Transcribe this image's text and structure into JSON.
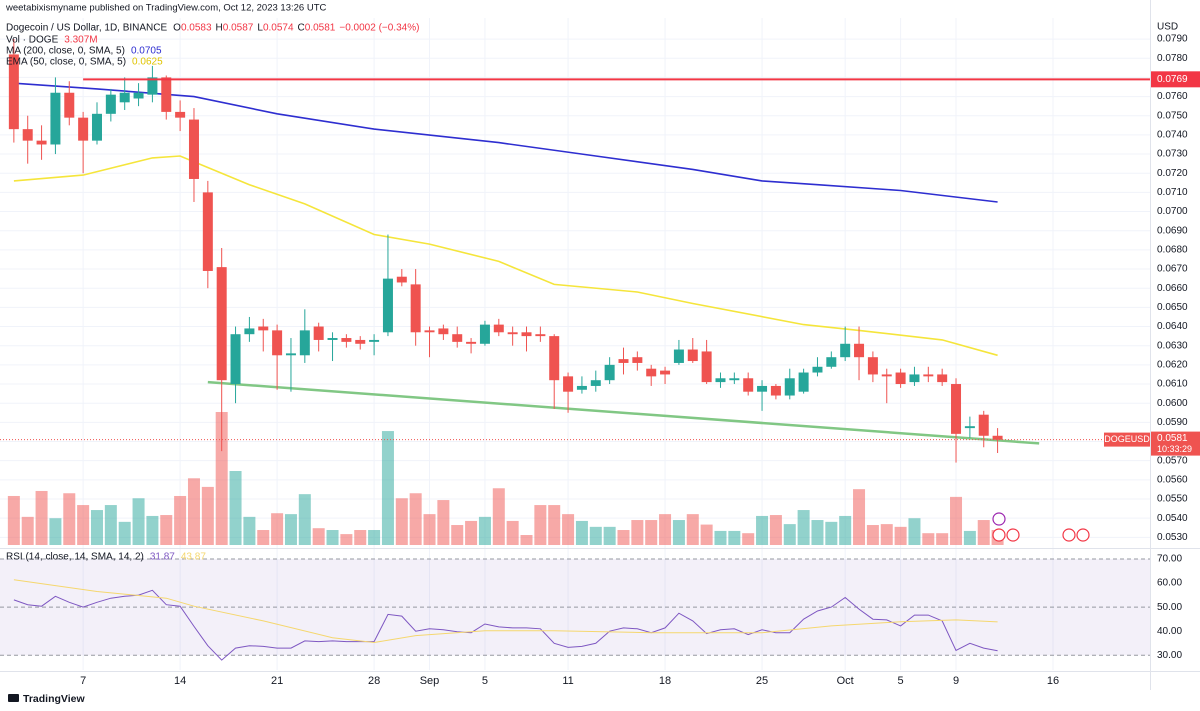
{
  "header": {
    "published": "weetabixismyname published on TradingView.com, Oct 12, 2023 13:26 UTC",
    "title": "Dogecoin / US Dollar, 1D, BINANCE",
    "ohlc_labels": [
      "O",
      "H",
      "L",
      "C"
    ],
    "change": "−0.0002 (−0.34%)",
    "volume_label": "Vol · DOGE",
    "currency": "USD",
    "symbol": "DOGEUSD",
    "countdown": "10:33:29",
    "brand": "TradingView"
  },
  "chart_data": [
    {
      "type": "candlestick",
      "x": [
        "2023-08-02",
        "2023-08-03",
        "2023-08-04",
        "2023-08-05",
        "2023-08-06",
        "2023-08-07",
        "2023-08-08",
        "2023-08-09",
        "2023-08-10",
        "2023-08-11",
        "2023-08-12",
        "2023-08-13",
        "2023-08-14",
        "2023-08-15",
        "2023-08-16",
        "2023-08-17",
        "2023-08-18",
        "2023-08-19",
        "2023-08-20",
        "2023-08-21",
        "2023-08-22",
        "2023-08-23",
        "2023-08-24",
        "2023-08-25",
        "2023-08-26",
        "2023-08-27",
        "2023-08-28",
        "2023-08-29",
        "2023-08-30",
        "2023-08-31",
        "2023-09-01",
        "2023-09-02",
        "2023-09-03",
        "2023-09-04",
        "2023-09-05",
        "2023-09-06",
        "2023-09-07",
        "2023-09-08",
        "2023-09-09",
        "2023-09-10",
        "2023-09-11",
        "2023-09-12",
        "2023-09-13",
        "2023-09-14",
        "2023-09-15",
        "2023-09-16",
        "2023-09-17",
        "2023-09-18",
        "2023-09-19",
        "2023-09-20",
        "2023-09-21",
        "2023-09-22",
        "2023-09-23",
        "2023-09-24",
        "2023-09-25",
        "2023-09-26",
        "2023-09-27",
        "2023-09-28",
        "2023-09-29",
        "2023-09-30",
        "2023-10-01",
        "2023-10-02",
        "2023-10-03",
        "2023-10-04",
        "2023-10-05",
        "2023-10-06",
        "2023-10-07",
        "2023-10-08",
        "2023-10-09",
        "2023-10-10",
        "2023-10-11",
        "2023-10-12"
      ],
      "open": [
        0.0782,
        0.0743,
        0.0737,
        0.0735,
        0.0762,
        0.0749,
        0.0737,
        0.0751,
        0.0757,
        0.0759,
        0.0761,
        0.077,
        0.0752,
        0.0748,
        0.071,
        0.0671,
        0.061,
        0.0636,
        0.064,
        0.0638,
        0.0625,
        0.0625,
        0.064,
        0.0633,
        0.0634,
        0.0633,
        0.0632,
        0.0637,
        0.0666,
        0.0662,
        0.0638,
        0.0639,
        0.0636,
        0.0632,
        0.0631,
        0.0641,
        0.0637,
        0.0637,
        0.0636,
        0.0635,
        0.0614,
        0.0607,
        0.0609,
        0.0612,
        0.0623,
        0.0624,
        0.0618,
        0.0617,
        0.0621,
        0.0628,
        0.0627,
        0.0611,
        0.0612,
        0.0613,
        0.0606,
        0.0609,
        0.0604,
        0.0606,
        0.0616,
        0.0619,
        0.0624,
        0.0631,
        0.0624,
        0.0615,
        0.0616,
        0.0611,
        0.0615,
        0.0615,
        0.061,
        0.0587,
        0.0594,
        0.0583
      ],
      "high": [
        0.079,
        0.075,
        0.0745,
        0.077,
        0.0768,
        0.0752,
        0.0757,
        0.0764,
        0.077,
        0.0767,
        0.0776,
        0.0771,
        0.0758,
        0.0754,
        0.0716,
        0.0681,
        0.064,
        0.0645,
        0.0644,
        0.0641,
        0.0634,
        0.0649,
        0.0642,
        0.0637,
        0.0636,
        0.0635,
        0.0636,
        0.0688,
        0.067,
        0.067,
        0.064,
        0.0641,
        0.064,
        0.0634,
        0.0643,
        0.0644,
        0.064,
        0.064,
        0.064,
        0.0636,
        0.0616,
        0.0614,
        0.0617,
        0.0624,
        0.0629,
        0.0627,
        0.062,
        0.0619,
        0.0633,
        0.0634,
        0.0633,
        0.0616,
        0.0616,
        0.0616,
        0.0612,
        0.061,
        0.0618,
        0.0618,
        0.0624,
        0.0627,
        0.064,
        0.064,
        0.0627,
        0.0618,
        0.0618,
        0.0619,
        0.0619,
        0.0618,
        0.0613,
        0.0593,
        0.0596,
        0.0587
      ],
      "low": [
        0.0736,
        0.0725,
        0.0727,
        0.073,
        0.0745,
        0.072,
        0.0735,
        0.0747,
        0.0753,
        0.0755,
        0.0757,
        0.0748,
        0.0742,
        0.0705,
        0.066,
        0.0575,
        0.06,
        0.0632,
        0.0627,
        0.0607,
        0.0606,
        0.0621,
        0.0627,
        0.0622,
        0.0629,
        0.0628,
        0.0625,
        0.0635,
        0.0661,
        0.063,
        0.0624,
        0.0633,
        0.0629,
        0.0626,
        0.063,
        0.0635,
        0.063,
        0.0627,
        0.0632,
        0.0597,
        0.0595,
        0.0605,
        0.0606,
        0.061,
        0.0615,
        0.0617,
        0.0609,
        0.061,
        0.062,
        0.0621,
        0.061,
        0.0608,
        0.061,
        0.0604,
        0.0596,
        0.0602,
        0.0602,
        0.0605,
        0.0614,
        0.0618,
        0.0622,
        0.0612,
        0.0611,
        0.06,
        0.0608,
        0.0609,
        0.0611,
        0.0609,
        0.0569,
        0.0582,
        0.0577,
        0.0574
      ],
      "close": [
        0.0743,
        0.0737,
        0.0735,
        0.0762,
        0.0749,
        0.0737,
        0.0751,
        0.0761,
        0.0762,
        0.0762,
        0.077,
        0.0752,
        0.0749,
        0.0717,
        0.0669,
        0.0612,
        0.0636,
        0.0639,
        0.0638,
        0.0625,
        0.0626,
        0.0638,
        0.0633,
        0.0634,
        0.0632,
        0.0631,
        0.0633,
        0.0665,
        0.0663,
        0.0637,
        0.0637,
        0.0636,
        0.0632,
        0.0631,
        0.0641,
        0.0637,
        0.0636,
        0.0635,
        0.0635,
        0.0612,
        0.0606,
        0.0609,
        0.0612,
        0.062,
        0.0621,
        0.0621,
        0.0614,
        0.0615,
        0.0628,
        0.0622,
        0.0611,
        0.0613,
        0.0613,
        0.0606,
        0.0609,
        0.0604,
        0.0613,
        0.0616,
        0.0619,
        0.0624,
        0.0631,
        0.0624,
        0.0615,
        0.0614,
        0.061,
        0.0615,
        0.0614,
        0.0611,
        0.0584,
        0.0588,
        0.0583,
        0.0581
      ],
      "up_color": "#26a69a",
      "down_color": "#ef5350",
      "volume": {
        "values": [
          10800000,
          6200000,
          11900000,
          5900000,
          11400000,
          8800000,
          7700000,
          8800000,
          5100000,
          10300000,
          6400000,
          6600000,
          10800000,
          14700000,
          12800000,
          29300000,
          16300000,
          6200000,
          3300000,
          7000000,
          6800000,
          11200000,
          3700000,
          3300000,
          2400000,
          3300000,
          3300000,
          25100000,
          10300000,
          11400000,
          6800000,
          9900000,
          4400000,
          5300000,
          6200000,
          12500000,
          5300000,
          2200000,
          8800000,
          8800000,
          6800000,
          5300000,
          4000000,
          4000000,
          3300000,
          5500000,
          5500000,
          6800000,
          5500000,
          6800000,
          4500000,
          3100000,
          3100000,
          2600000,
          6400000,
          6600000,
          4600000,
          7700000,
          5500000,
          5100000,
          6400000,
          12300000,
          4400000,
          4600000,
          4000000,
          5900000,
          2600000,
          2600000,
          10600000,
          3100000,
          5500000,
          3307000
        ],
        "value_labels": [
          null,
          null,
          null,
          null,
          null,
          null,
          null,
          null,
          null,
          null,
          null,
          null,
          null,
          null,
          null,
          null,
          null,
          null,
          null,
          null,
          null,
          null,
          null,
          null,
          null,
          null,
          null,
          null,
          null,
          null,
          null,
          null,
          null,
          null,
          null,
          null,
          null,
          null,
          null,
          null,
          null,
          null,
          null,
          null,
          null,
          null,
          null,
          null,
          null,
          null,
          null,
          null,
          null,
          null,
          null,
          null,
          null,
          null,
          null,
          null,
          null,
          null,
          null,
          null,
          null,
          null,
          null,
          null,
          null,
          null,
          null,
          "3.307M"
        ]
      },
      "series": [
        {
          "name": "MA (200, close, 0, SMA, 5)",
          "color": "#2e2ed0",
          "x": [
            "2023-08-02",
            "2023-08-08",
            "2023-08-15",
            "2023-08-21",
            "2023-08-28",
            "2023-09-06",
            "2023-09-13",
            "2023-09-20",
            "2023-09-25",
            "2023-09-29",
            "2023-10-05",
            "2023-10-12"
          ],
          "values": [
            0.0767,
            0.0764,
            0.076,
            0.0751,
            0.0743,
            0.0736,
            0.0729,
            0.0722,
            0.0716,
            0.0714,
            0.0711,
            0.0705
          ]
        },
        {
          "name": "EMA (50, close, 0, SMA, 5)",
          "color": "#f5e53b",
          "x": [
            "2023-08-02",
            "2023-08-07",
            "2023-08-12",
            "2023-08-14",
            "2023-08-16",
            "2023-08-19",
            "2023-08-23",
            "2023-08-28",
            "2023-09-01",
            "2023-09-06",
            "2023-09-10",
            "2023-09-16",
            "2023-09-20",
            "2023-09-28",
            "2023-10-02",
            "2023-10-08",
            "2023-10-12"
          ],
          "values": [
            0.0716,
            0.0719,
            0.0728,
            0.0729,
            0.0723,
            0.0714,
            0.0704,
            0.0688,
            0.0683,
            0.0674,
            0.0662,
            0.0658,
            0.0652,
            0.0641,
            0.0638,
            0.0633,
            0.0625
          ]
        }
      ],
      "hlines": [
        {
          "value": 0.0769,
          "x": "2023-08-07",
          "color": "#f23645"
        }
      ],
      "trendlines": [
        {
          "x": [
            "2023-08-16",
            "2023-10-15"
          ],
          "values": [
            0.0611,
            0.0579
          ],
          "color": "#81c784"
        }
      ],
      "ylim": [
        0.0526,
        0.0801
      ],
      "yticks": [
        {
          "value": 0.053,
          "label": "0.0530"
        },
        {
          "value": 0.054,
          "label": "0.0540"
        },
        {
          "value": 0.055,
          "label": "0.0550"
        },
        {
          "value": 0.056,
          "label": "0.0560"
        },
        {
          "value": 0.057,
          "label": "0.0570"
        },
        {
          "value": 0.058,
          "label": "0.0580"
        },
        {
          "value": 0.059,
          "label": "0.0590"
        },
        {
          "value": 0.06,
          "label": "0.0600"
        },
        {
          "value": 0.061,
          "label": "0.0610"
        },
        {
          "value": 0.062,
          "label": "0.0620"
        },
        {
          "value": 0.063,
          "label": "0.0630"
        },
        {
          "value": 0.064,
          "label": "0.0640"
        },
        {
          "value": 0.065,
          "label": "0.0650"
        },
        {
          "value": 0.066,
          "label": "0.0660"
        },
        {
          "value": 0.067,
          "label": "0.0670"
        },
        {
          "value": 0.068,
          "label": "0.0680"
        },
        {
          "value": 0.069,
          "label": "0.0690"
        },
        {
          "value": 0.07,
          "label": "0.0700"
        },
        {
          "value": 0.071,
          "label": "0.0710"
        },
        {
          "value": 0.072,
          "label": "0.0720"
        },
        {
          "value": 0.073,
          "label": "0.0730"
        },
        {
          "value": 0.074,
          "label": "0.0740"
        },
        {
          "value": 0.075,
          "label": "0.0750"
        },
        {
          "value": 0.076,
          "label": "0.0760"
        },
        {
          "value": 0.077,
          "label": "0.0770"
        },
        {
          "value": 0.078,
          "label": "0.0780"
        },
        {
          "value": 0.079,
          "label": "0.0790"
        }
      ],
      "xlim": [
        "2023-08-01",
        "2023-10-23"
      ],
      "xticks": [
        {
          "value": "2023-08-07",
          "label": "7"
        },
        {
          "value": "2023-08-14",
          "label": "14"
        },
        {
          "value": "2023-08-21",
          "label": "21"
        },
        {
          "value": "2023-08-28",
          "label": "28"
        },
        {
          "value": "2023-09-01",
          "label": "Sep"
        },
        {
          "value": "2023-09-05",
          "label": "5"
        },
        {
          "value": "2023-09-11",
          "label": "11"
        },
        {
          "value": "2023-09-18",
          "label": "18"
        },
        {
          "value": "2023-09-25",
          "label": "25"
        },
        {
          "value": "2023-10-01",
          "label": "Oct"
        },
        {
          "value": "2023-10-05",
          "label": "5"
        },
        {
          "value": "2023-10-09",
          "label": "9"
        },
        {
          "value": "2023-10-16",
          "label": "16"
        }
      ],
      "grid": true
    },
    {
      "type": "line",
      "title": "RSI (14, close, 14, SMA, 14, 2)",
      "series": [
        {
          "color": "#7e57c2",
          "values": [
            53,
            51,
            50.4,
            54.5,
            52,
            50,
            52,
            53.7,
            54.5,
            55,
            57,
            51,
            50.4,
            42,
            34,
            28,
            33,
            34,
            33.7,
            33,
            33,
            36,
            35.7,
            36,
            35.7,
            35.7,
            35.7,
            47,
            46.3,
            40,
            41,
            40.6,
            39.8,
            39.4,
            43,
            41.8,
            41.4,
            41.4,
            41,
            35,
            33.3,
            33.7,
            35,
            40,
            41.4,
            41,
            39.4,
            41.4,
            47.5,
            44.3,
            39,
            40.6,
            41,
            38.6,
            40.6,
            39.4,
            39.4,
            45,
            48.4,
            50,
            54,
            49.2,
            45,
            44.7,
            42.2,
            46.7,
            46.7,
            44.3,
            32,
            35,
            33,
            31.87
          ]
        },
        {
          "color": "#f5d76e",
          "x": [
            "2023-08-02",
            "2023-08-08",
            "2023-08-13",
            "2023-08-15",
            "2023-08-20",
            "2023-08-25",
            "2023-08-28",
            "2023-08-31",
            "2023-09-05",
            "2023-09-10",
            "2023-09-17",
            "2023-09-25",
            "2023-09-30",
            "2023-10-05",
            "2023-10-09",
            "2023-10-12"
          ],
          "values": [
            61.4,
            56.5,
            53.7,
            50.4,
            44.3,
            37.3,
            35.3,
            38.2,
            40.2,
            40.2,
            39.4,
            39.4,
            42.2,
            43.9,
            44.7,
            43.87
          ]
        }
      ],
      "ylim": [
        23.9,
        72.9
      ],
      "yticks": [
        {
          "value": 30,
          "label": "30.00"
        },
        {
          "value": 40,
          "label": "40.00"
        },
        {
          "value": 50,
          "label": "50.00"
        },
        {
          "value": 60,
          "label": "60.00"
        },
        {
          "value": 70,
          "label": "70.00"
        }
      ],
      "levels": [
        30,
        50,
        70
      ],
      "band_color": "#7e57c2"
    }
  ]
}
